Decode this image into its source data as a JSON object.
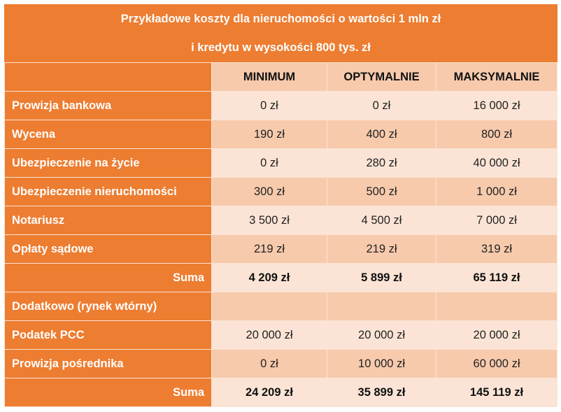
{
  "title": {
    "line1": "Przykładowe koszty dla nieruchomości o wartości 1 mln zł",
    "line2": "i kredytu w wysokości 800 tys. zł"
  },
  "colors": {
    "header_orange": "#ed7d31",
    "row_light": "#fbe4d5",
    "row_dark": "#f7caac"
  },
  "columns": [
    "",
    "MINIMUM",
    "OPTYMALNIE",
    "MAKSYMALNIE"
  ],
  "rows": [
    {
      "label": "Prowizja bankowa",
      "min": "0 zł",
      "opt": "0 zł",
      "max": "16 000 zł"
    },
    {
      "label": "Wycena",
      "min": "190 zł",
      "opt": "400 zł",
      "max": "800 zł"
    },
    {
      "label": "Ubezpieczenie na życie",
      "min": "0 zł",
      "opt": "280 zł",
      "max": "40 000 zł"
    },
    {
      "label": "Ubezpieczenie nieruchomości",
      "min": "300 zł",
      "opt": "500 zł",
      "max": "1 000 zł"
    },
    {
      "label": "Notariusz",
      "min": "3 500 zł",
      "opt": "4 500 zł",
      "max": "7 000 zł"
    },
    {
      "label": "Opłaty sądowe",
      "min": "219 zł",
      "opt": "219 zł",
      "max": "319 zł"
    },
    {
      "label": "Suma",
      "min": "4 209 zł",
      "opt": "5 899 zł",
      "max": "65 119 zł"
    },
    {
      "label": "Dodatkowo (rynek wtórny)",
      "min": "",
      "opt": "",
      "max": ""
    },
    {
      "label": "Podatek PCC",
      "min": "20 000 zł",
      "opt": "20 000 zł",
      "max": "20 000 zł"
    },
    {
      "label": "Prowizja pośrednika",
      "min": "0 zł",
      "opt": "10 000 zł",
      "max": "60 000 zł"
    },
    {
      "label": "Suma",
      "min": "24 209 zł",
      "opt": "35 899 zł",
      "max": "145 119 zł"
    }
  ]
}
